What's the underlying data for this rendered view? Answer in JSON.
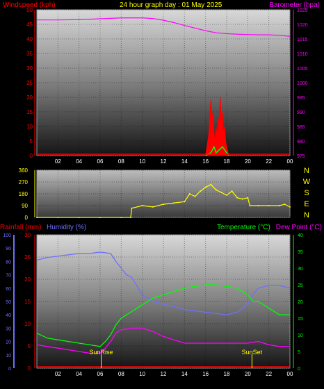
{
  "header": {
    "title": "24 hour graph day : 01 May 2025",
    "left_label": "Windspeed (kph)",
    "right_label": "Barometer (hpa)"
  },
  "colors": {
    "title": "#ffff00",
    "wind_label": "#ff0000",
    "baro_label": "#ff00ff",
    "rain_label": "#ff0000",
    "humidity_label": "#6f6fff",
    "temp_label": "#00ff00",
    "dew_label": "#ff00ff",
    "direction": "#ffff00",
    "axis_text": "#ffffff",
    "compass": "#ffff00"
  },
  "x_ticks": [
    "02",
    "04",
    "06",
    "08",
    "10",
    "12",
    "14",
    "16",
    "18",
    "20",
    "22",
    "00"
  ],
  "compass_letters": [
    "N",
    "W",
    "S",
    "E",
    "N"
  ],
  "bottom": {
    "rain_label": "Rainfall (mm)",
    "humidity_label": "Humidity (%)",
    "temp_label": "Temperature (°C)",
    "dew_label": "Dew Point (°C)",
    "sunrise_label": "SunRise",
    "sunset_label": "SunSet"
  },
  "chart_data": [
    {
      "type": "line",
      "title": "24 hour graph day : 01 May 2025",
      "xlabel": "",
      "x_ticks": [
        "02",
        "04",
        "06",
        "08",
        "10",
        "12",
        "14",
        "16",
        "18",
        "20",
        "22",
        "00"
      ],
      "y_left": {
        "label": "Windspeed (kph)",
        "ticks": [
          0,
          5,
          10,
          15,
          20,
          25,
          30,
          35,
          40,
          45,
          50
        ],
        "range": [
          0,
          50
        ]
      },
      "y_right": {
        "label": "Barometer (hpa)",
        "ticks": [
          975,
          980,
          985,
          990,
          995,
          1000,
          1005,
          1010,
          1015,
          1020,
          1025
        ],
        "range": [
          975,
          1025
        ]
      },
      "series": [
        {
          "name": "Barometer (hpa)",
          "axis": "right",
          "color": "#ff00ff",
          "x": [
            0,
            2,
            4,
            6,
            8,
            10,
            11,
            12,
            13,
            14,
            15,
            16,
            17,
            18,
            19,
            20,
            21,
            22,
            23,
            24
          ],
          "y": [
            1021.5,
            1021.5,
            1021.6,
            1021.9,
            1022.2,
            1022.2,
            1022.0,
            1021.4,
            1020.6,
            1019.6,
            1018.7,
            1017.8,
            1017.1,
            1016.8,
            1016.6,
            1016.5,
            1016.4,
            1016.4,
            1016.2,
            1015.9
          ]
        },
        {
          "name": "Wind gust (kph)",
          "axis": "left",
          "color": "#ff0000",
          "x": [
            16.0,
            16.3,
            16.5,
            16.6,
            16.7,
            16.8,
            16.9,
            17.0,
            17.1,
            17.2,
            17.3,
            17.4,
            17.5,
            17.6,
            17.7,
            17.8,
            17.9,
            18.0,
            18.2
          ],
          "y": [
            0,
            7,
            19,
            12,
            15,
            8,
            5,
            10,
            6,
            13,
            12,
            20,
            9,
            15,
            7,
            10,
            5,
            3,
            0
          ]
        },
        {
          "name": "Wind average (kph)",
          "axis": "left",
          "color": "#00ff00",
          "x": [
            16.0,
            16.5,
            16.8,
            17.0,
            17.3,
            17.6,
            18.0,
            18.2
          ],
          "y": [
            0,
            1,
            3,
            1,
            2,
            3,
            1,
            0
          ]
        }
      ]
    },
    {
      "type": "scatter",
      "title": "",
      "x_ticks": [
        "02",
        "04",
        "06",
        "08",
        "10",
        "12",
        "14",
        "16",
        "18",
        "20",
        "22",
        "00"
      ],
      "y": {
        "label": "",
        "ticks": [
          0,
          90,
          180,
          270,
          360
        ],
        "range": [
          0,
          360
        ]
      },
      "series": [
        {
          "name": "Wind direction (deg)",
          "color": "#ffff00",
          "x": [
            0,
            2,
            4,
            6,
            8,
            8.9,
            9,
            10,
            11,
            12,
            13,
            14,
            14.5,
            15,
            15.5,
            16,
            16.5,
            17,
            17.5,
            18,
            18.5,
            19,
            19.5,
            20,
            20.2,
            21,
            22,
            23,
            23.5,
            24
          ],
          "y": [
            0,
            0,
            0,
            0,
            0,
            0,
            70,
            90,
            80,
            100,
            110,
            120,
            180,
            160,
            200,
            230,
            250,
            210,
            190,
            170,
            200,
            150,
            140,
            150,
            90,
            90,
            90,
            90,
            100,
            80
          ]
        }
      ]
    },
    {
      "type": "line",
      "title": "",
      "x_ticks": [
        "02",
        "04",
        "06",
        "08",
        "10",
        "12",
        "14",
        "16",
        "18",
        "20",
        "22",
        "00"
      ],
      "y_left_outer": {
        "label": "Humidity (%)",
        "ticks": [
          0,
          10,
          20,
          30,
          40,
          50,
          60,
          70,
          80,
          90,
          100
        ],
        "range": [
          0,
          100
        ]
      },
      "y_left_inner": {
        "label": "Rainfall (mm)",
        "ticks": [
          0,
          5,
          10,
          15,
          20,
          25,
          30
        ],
        "range": [
          0,
          30
        ]
      },
      "y_right": {
        "label": "Temperature (°C)",
        "ticks": [
          0,
          5,
          10,
          15,
          20,
          25,
          30,
          35,
          40
        ],
        "range": [
          0,
          40
        ]
      },
      "series": [
        {
          "name": "Humidity (%)",
          "axis": "left_outer",
          "color": "#6f6fff",
          "x": [
            0,
            1,
            2,
            3,
            4,
            5,
            6,
            7,
            7.5,
            8,
            8.5,
            9,
            10,
            11,
            12,
            13,
            14,
            15,
            16,
            17,
            18,
            19,
            20,
            20.5,
            21,
            22,
            23,
            24
          ],
          "y": [
            81,
            83,
            84,
            85,
            86,
            86,
            87,
            86,
            80,
            75,
            70,
            68,
            55,
            50,
            48,
            46,
            44,
            43,
            42,
            41,
            40,
            42,
            48,
            55,
            60,
            62,
            62,
            60
          ]
        },
        {
          "name": "Temperature (°C)",
          "axis": "right",
          "color": "#00ff00",
          "x": [
            0,
            1,
            2,
            3,
            4,
            5,
            6,
            6.5,
            7,
            7.5,
            8,
            8.5,
            9,
            10,
            11,
            12,
            13,
            14,
            15,
            16,
            17,
            18,
            19,
            20,
            20.5,
            21,
            22,
            23,
            24
          ],
          "y": [
            10.5,
            9,
            8.5,
            8,
            7.5,
            7,
            6.5,
            8,
            10,
            13,
            15,
            16,
            17,
            19,
            21,
            22,
            23,
            24,
            24.5,
            25,
            25,
            24.5,
            24,
            22,
            20,
            20,
            18,
            16,
            16
          ]
        },
        {
          "name": "Dew Point (°C)",
          "axis": "right",
          "color": "#ff00ff",
          "x": [
            0,
            1,
            2,
            3,
            4,
            5,
            6,
            6.5,
            7,
            7.5,
            8,
            9,
            10,
            11,
            12,
            13,
            14,
            15,
            16,
            17,
            18,
            19,
            20,
            21,
            22,
            23,
            24
          ],
          "y": [
            7,
            6.5,
            6,
            5.5,
            5,
            4.5,
            4.5,
            6,
            8,
            10.5,
            11.5,
            12,
            12,
            11,
            9.5,
            8.5,
            7.5,
            7.5,
            7.5,
            7.5,
            7.5,
            7.5,
            7.5,
            8,
            7,
            6.5,
            6.5
          ]
        },
        {
          "name": "Rainfall (mm)",
          "axis": "left_inner",
          "color": "#ff0000",
          "x": [
            0,
            24
          ],
          "y": [
            0,
            0
          ]
        }
      ],
      "annotations": [
        {
          "text": "SunRise",
          "x": 6.1
        },
        {
          "text": "SunSet",
          "x": 20.4
        }
      ]
    }
  ]
}
